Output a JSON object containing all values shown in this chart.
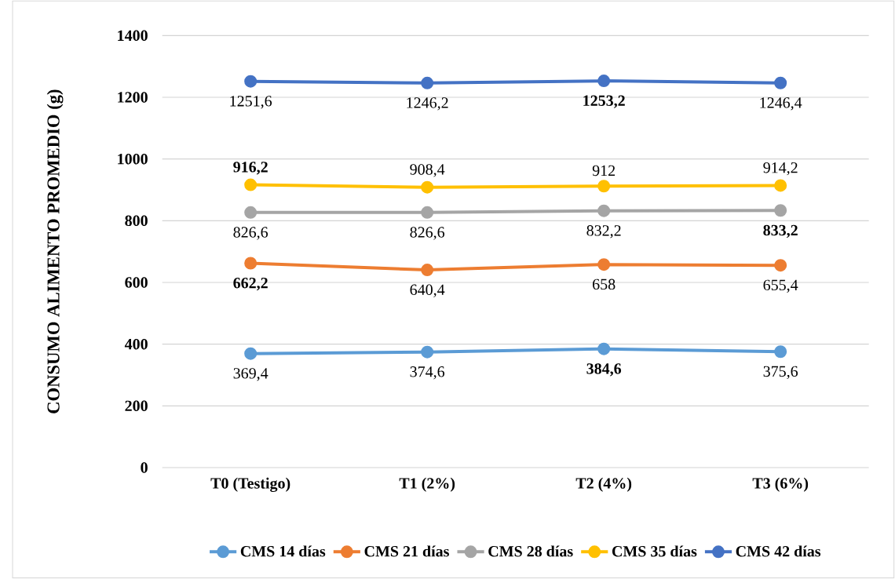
{
  "chart_data": {
    "type": "line",
    "ylabel": "CONSUMO ALIMENTO PROMEDIO (g)",
    "categories": [
      "T0 (Testigo)",
      "T1 (2%)",
      "T2 (4%)",
      "T3 (6%)"
    ],
    "ylim": [
      0,
      1400
    ],
    "yticks": [
      0,
      200,
      400,
      600,
      800,
      1000,
      1200,
      1400
    ],
    "grid": "y",
    "legend": "bottom",
    "marker": "circle",
    "line_style": "solid",
    "series": [
      {
        "name": "CMS 14 días",
        "color": "#5b9bd5",
        "values": [
          369.4,
          374.6,
          384.6,
          375.6
        ],
        "value_labels": [
          "369,4",
          "374,6",
          "**384,6**",
          "375,6"
        ]
      },
      {
        "name": "CMS 21 días",
        "color": "#ed7d31",
        "values": [
          662.2,
          640.4,
          658,
          655.4
        ],
        "value_labels": [
          "**662,2**",
          "640,4",
          "658",
          "655,4"
        ]
      },
      {
        "name": "CMS 28 días",
        "color": "#a5a5a5",
        "values": [
          826.6,
          826.6,
          832.2,
          833.2
        ],
        "value_labels": [
          "826,6",
          "826,6",
          "832,2",
          "**833,2**"
        ]
      },
      {
        "name": "CMS 35 días",
        "color": "#ffc000",
        "values": [
          916.2,
          908.4,
          912,
          914.2
        ],
        "value_labels": [
          "**916,2**",
          "908,4",
          "912",
          "914,2"
        ]
      },
      {
        "name": "CMS 42 días",
        "color": "#4472c4",
        "values": [
          1251.6,
          1246.2,
          1253.2,
          1246.4
        ],
        "value_labels": [
          "1251,6",
          "1246,2",
          "**1253,2**",
          "1246,4"
        ]
      }
    ]
  }
}
